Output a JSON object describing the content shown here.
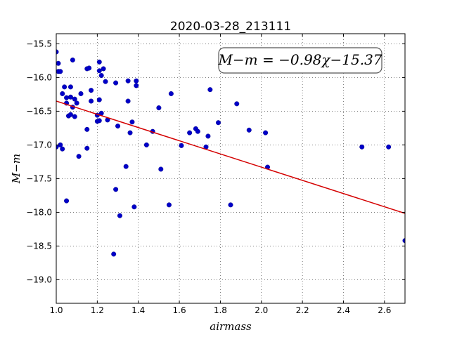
{
  "chart_data": {
    "type": "scatter",
    "title": "2020-03-28_213111",
    "xlabel": "airmass",
    "ylabel": "M−m",
    "xlim": [
      1.0,
      2.7
    ],
    "ylim": [
      -19.35,
      -15.35
    ],
    "y_inverted": true,
    "grid": true,
    "xticks": [
      1.0,
      1.2,
      1.4,
      1.6,
      1.8,
      2.0,
      2.2,
      2.4,
      2.6
    ],
    "xtick_labels": [
      "1.0",
      "1.2",
      "1.4",
      "1.6",
      "1.8",
      "2.0",
      "2.2",
      "2.4",
      "2.6"
    ],
    "yticks": [
      -15.5,
      -16.0,
      -16.5,
      -17.0,
      -17.5,
      -18.0,
      -18.5,
      -19.0
    ],
    "ytick_labels": [
      "−15.5",
      "−16.0",
      "−16.5",
      "−17.0",
      "−17.5",
      "−18.0",
      "−18.5",
      "−19.0"
    ],
    "annotation": "M−m = −0.98χ−15.37",
    "fit": {
      "slope": -0.98,
      "intercept": -15.37,
      "color": "#d40000"
    },
    "marker_color": "#0000c8",
    "points": [
      [
        1.0,
        -15.62
      ],
      [
        1.01,
        -15.79
      ],
      [
        1.01,
        -15.91
      ],
      [
        1.02,
        -15.91
      ],
      [
        1.03,
        -16.24
      ],
      [
        1.04,
        -16.14
      ],
      [
        1.05,
        -16.3
      ],
      [
        1.05,
        -16.38
      ],
      [
        1.06,
        -16.57
      ],
      [
        1.07,
        -16.55
      ],
      [
        1.07,
        -16.14
      ],
      [
        1.07,
        -16.29
      ],
      [
        1.08,
        -15.74
      ],
      [
        1.08,
        -16.44
      ],
      [
        1.09,
        -16.32
      ],
      [
        1.09,
        -16.58
      ],
      [
        1.1,
        -16.38
      ],
      [
        1.11,
        -17.17
      ],
      [
        1.12,
        -16.24
      ],
      [
        1.15,
        -17.05
      ],
      [
        1.15,
        -16.77
      ],
      [
        1.15,
        -15.87
      ],
      [
        1.16,
        -15.86
      ],
      [
        1.17,
        -16.35
      ],
      [
        1.17,
        -16.19
      ],
      [
        1.2,
        -16.56
      ],
      [
        1.2,
        -16.65
      ],
      [
        1.21,
        -16.64
      ],
      [
        1.21,
        -15.77
      ],
      [
        1.21,
        -15.9
      ],
      [
        1.22,
        -15.97
      ],
      [
        1.22,
        -16.53
      ],
      [
        1.21,
        -16.33
      ],
      [
        1.23,
        -15.87
      ],
      [
        1.24,
        -16.06
      ],
      [
        1.25,
        -16.63
      ],
      [
        1.29,
        -16.08
      ],
      [
        1.3,
        -16.72
      ],
      [
        1.29,
        -17.66
      ],
      [
        1.31,
        -18.05
      ],
      [
        1.28,
        -18.62
      ],
      [
        1.34,
        -17.32
      ],
      [
        1.35,
        -16.35
      ],
      [
        1.35,
        -16.05
      ],
      [
        1.36,
        -16.82
      ],
      [
        1.37,
        -16.66
      ],
      [
        1.38,
        -17.92
      ],
      [
        1.39,
        -16.05
      ],
      [
        1.39,
        -16.12
      ],
      [
        1.44,
        -17.0
      ],
      [
        1.47,
        -16.8
      ],
      [
        1.5,
        -16.45
      ],
      [
        1.51,
        -17.36
      ],
      [
        1.55,
        -17.89
      ],
      [
        1.56,
        -16.24
      ],
      [
        1.61,
        -17.01
      ],
      [
        1.65,
        -16.82
      ],
      [
        1.68,
        -16.76
      ],
      [
        1.69,
        -16.8
      ],
      [
        1.73,
        -17.03
      ],
      [
        1.74,
        -16.87
      ],
      [
        1.75,
        -16.18
      ],
      [
        1.79,
        -16.67
      ],
      [
        1.85,
        -17.89
      ],
      [
        1.88,
        -16.39
      ],
      [
        1.94,
        -16.78
      ],
      [
        2.02,
        -16.82
      ],
      [
        2.03,
        -17.33
      ],
      [
        2.49,
        -17.03
      ],
      [
        2.62,
        -17.03
      ],
      [
        2.7,
        -18.42
      ],
      [
        1.0,
        -17.03
      ],
      [
        1.02,
        -17.0
      ],
      [
        1.03,
        -17.06
      ],
      [
        1.05,
        -17.83
      ]
    ]
  }
}
